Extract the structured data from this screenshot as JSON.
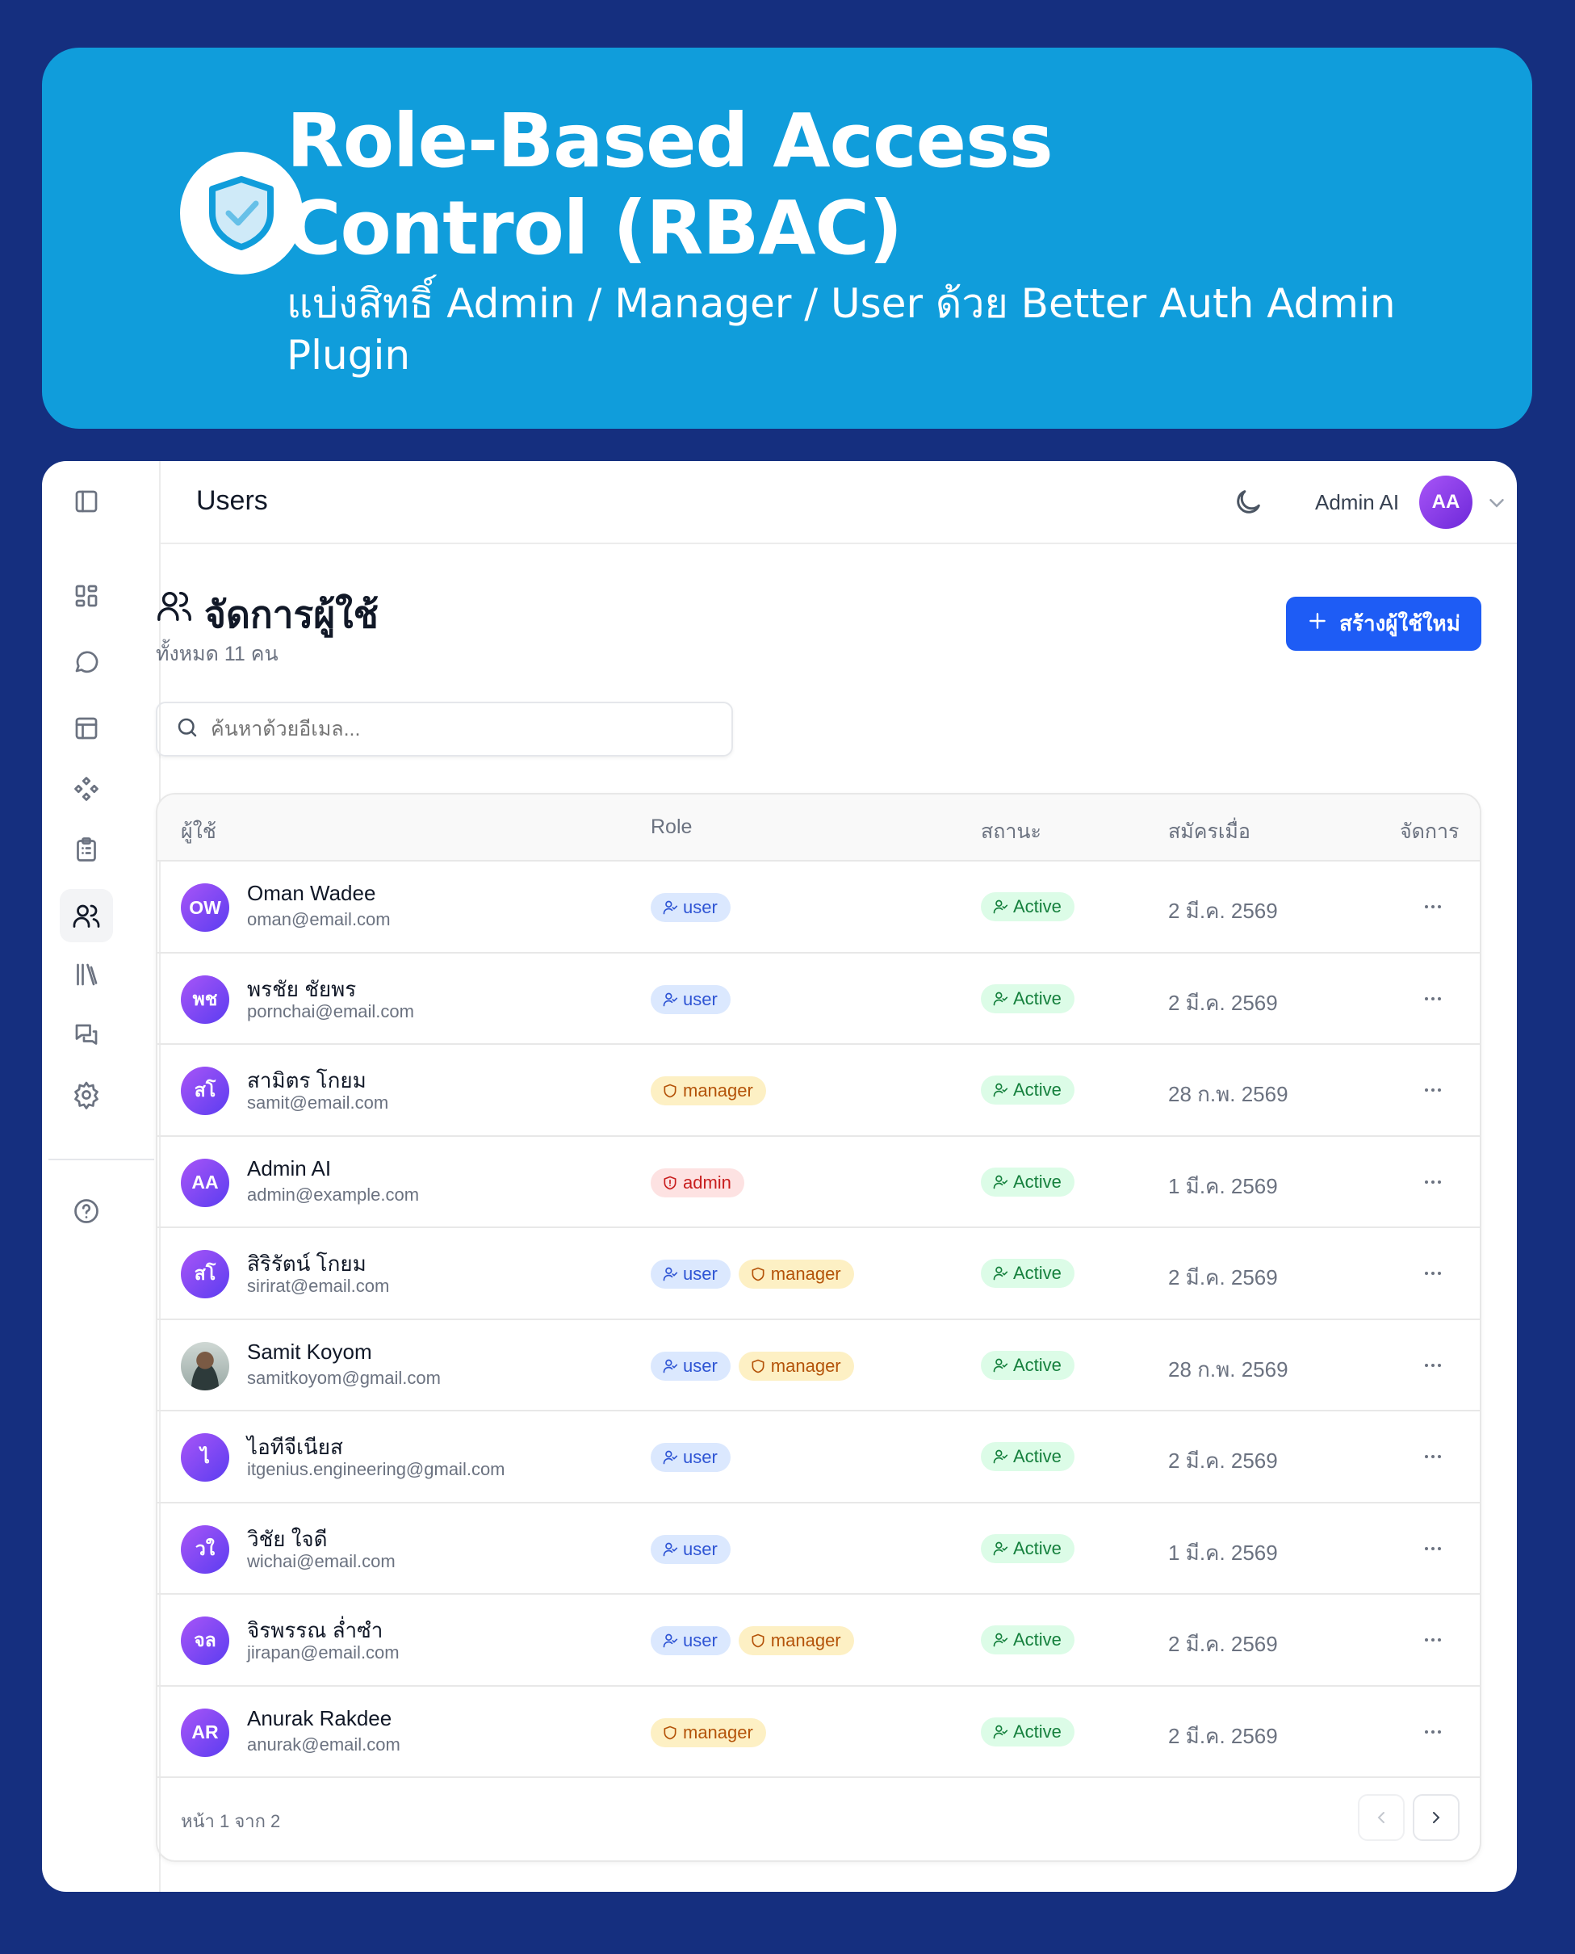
{
  "hero": {
    "title": "Role-Based Access Control (RBAC)",
    "subtitle": "แบ่งสิทธิ์ Admin / Manager / User ด้วย Better Auth Admin Plugin",
    "logo_icon": "shield-check-icon",
    "color": "#109ddb"
  },
  "topbar": {
    "title": "Users",
    "user_name": "Admin AI",
    "user_initials": "AA"
  },
  "page": {
    "title": "จัดการผู้ใช้",
    "count": "ทั้งหมด 11 คน",
    "create_label": "สร้างผู้ใช้ใหม่",
    "search_placeholder": "ค้นหาด้วยอีเมล..."
  },
  "table": {
    "headers": {
      "user": "ผู้ใช้",
      "role": "Role",
      "status": "สถานะ",
      "joined": "สมัครเมื่อ",
      "actions": "จัดการ"
    },
    "rows": [
      {
        "initials": "OW",
        "name": "Oman Wadee",
        "email": "oman@email.com",
        "roles": [
          "user"
        ],
        "status": "Active",
        "date": "2 มี.ค. 2569"
      },
      {
        "initials": "พช",
        "name": "พรชัย ชัยพร",
        "email": "pornchai@email.com",
        "roles": [
          "user"
        ],
        "status": "Active",
        "date": "2 มี.ค. 2569"
      },
      {
        "initials": "สโ",
        "name": "สามิตร โกยม",
        "email": "samit@email.com",
        "roles": [
          "manager"
        ],
        "status": "Active",
        "date": "28 ก.พ. 2569"
      },
      {
        "initials": "AA",
        "name": "Admin AI",
        "email": "admin@example.com",
        "roles": [
          "admin"
        ],
        "status": "Active",
        "date": "1 มี.ค. 2569"
      },
      {
        "initials": "สโ",
        "name": "สิริรัตน์ โกยม",
        "email": "sirirat@email.com",
        "roles": [
          "user",
          "manager"
        ],
        "status": "Active",
        "date": "2 มี.ค. 2569"
      },
      {
        "initials": "",
        "avatar": "photo",
        "name": "Samit Koyom",
        "email": "samitkoyom@gmail.com",
        "roles": [
          "user",
          "manager"
        ],
        "status": "Active",
        "date": "28 ก.พ. 2569"
      },
      {
        "initials": "ไ",
        "name": "ไอทีจีเนียส",
        "email": "itgenius.engineering@gmail.com",
        "roles": [
          "user"
        ],
        "status": "Active",
        "date": "2 มี.ค. 2569"
      },
      {
        "initials": "วใ",
        "name": "วิชัย ใจดี",
        "email": "wichai@email.com",
        "roles": [
          "user"
        ],
        "status": "Active",
        "date": "1 มี.ค. 2569"
      },
      {
        "initials": "จล",
        "name": "จิรพรรณ ล่ำซำ",
        "email": "jirapan@email.com",
        "roles": [
          "user",
          "manager"
        ],
        "status": "Active",
        "date": "2 มี.ค. 2569"
      },
      {
        "initials": "AR",
        "name": "Anurak Rakdee",
        "email": "anurak@email.com",
        "roles": [
          "manager"
        ],
        "status": "Active",
        "date": "2 มี.ค. 2569"
      }
    ],
    "pagination": "หน้า 1 จาก 2"
  },
  "colors": {
    "background": "#152f7f",
    "primary": "#1e5cf5",
    "avatar": "#8b45f0",
    "user": "#2f55d4",
    "manager": "#b45309",
    "admin": "#c81e1e",
    "active": "#15803d"
  }
}
